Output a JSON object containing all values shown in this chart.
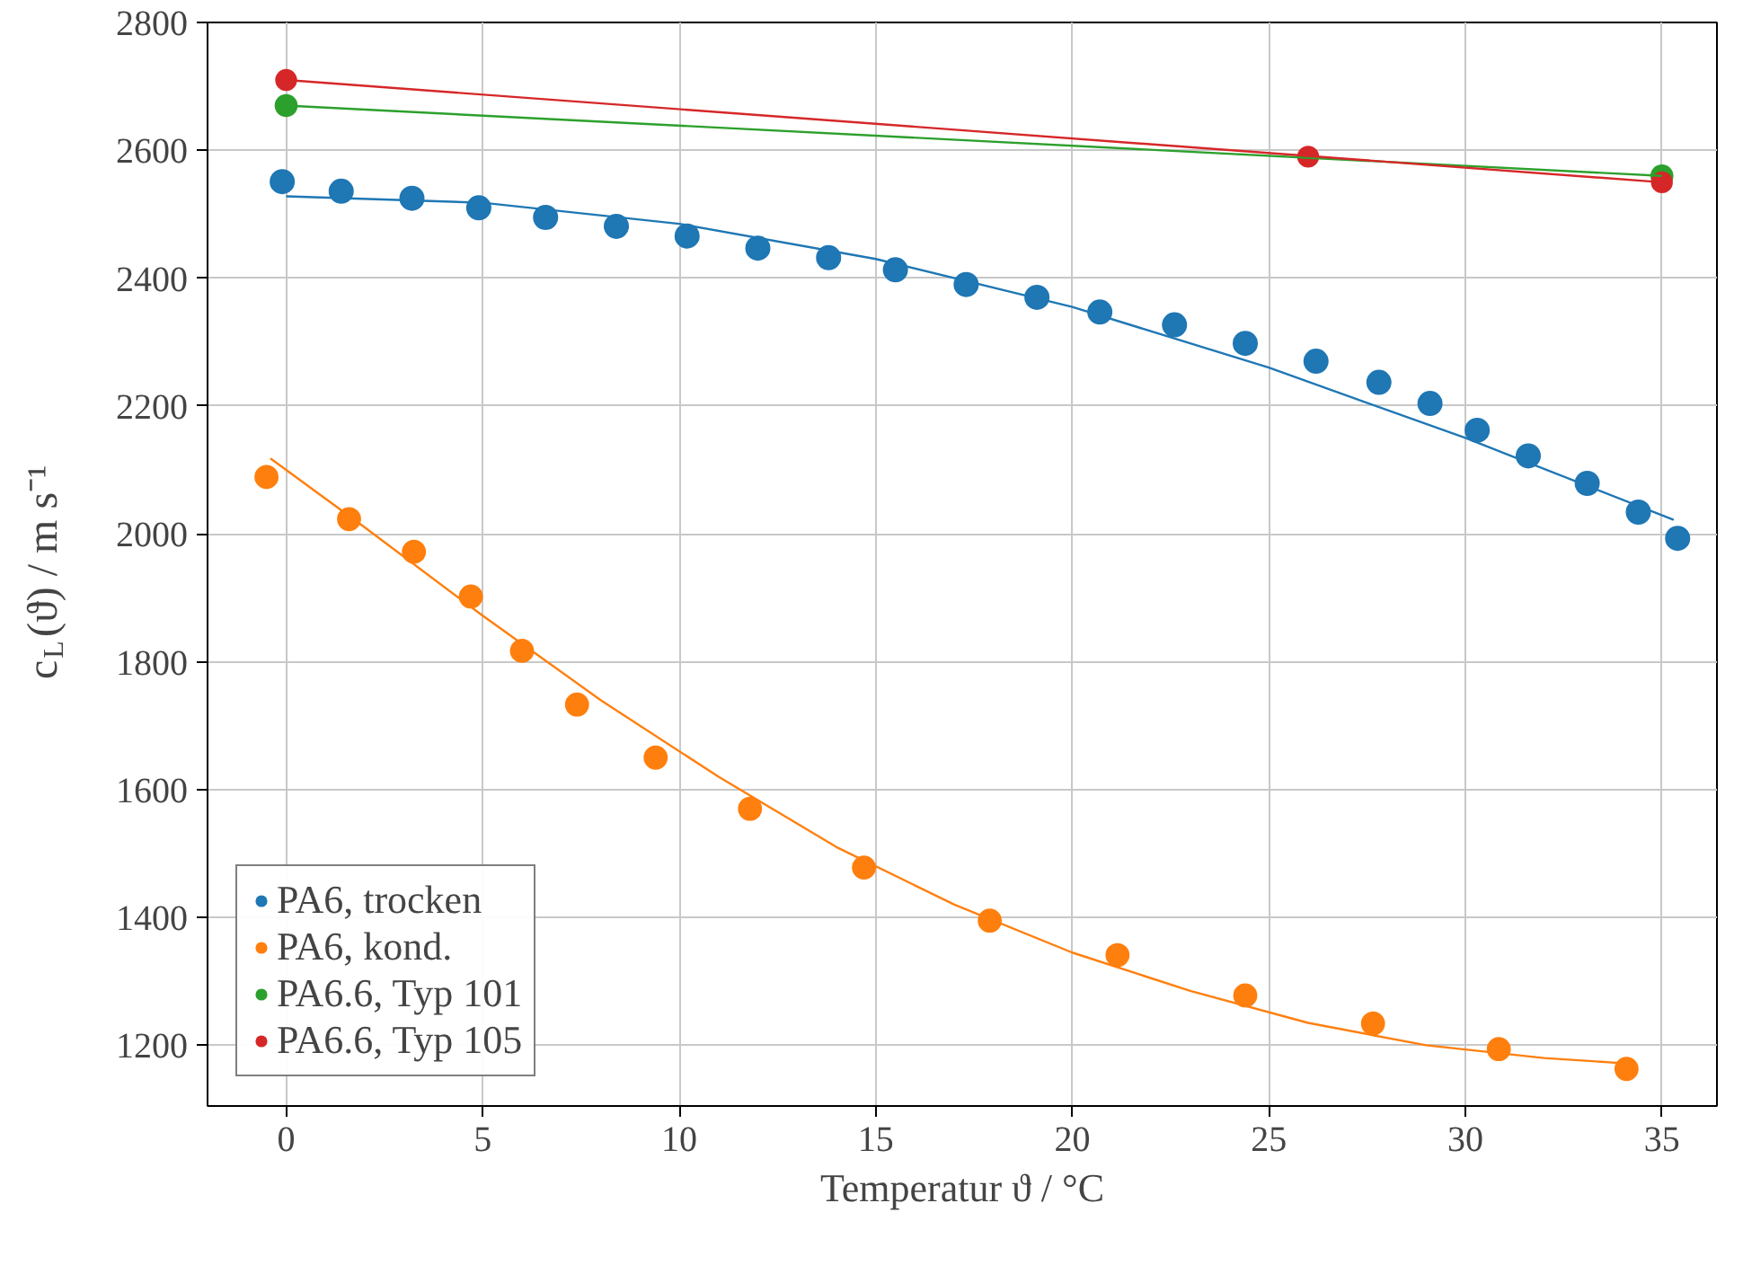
{
  "chart_data": {
    "type": "scatter",
    "xlabel": "Temperatur ϑ / °C",
    "ylabel": "c$_{L}$(ϑ) / m s⁻¹",
    "xlim": [
      -2,
      36.4
    ],
    "ylim": [
      1105,
      2800
    ],
    "xticks": [
      0,
      5,
      10,
      15,
      20,
      25,
      30,
      35
    ],
    "yticks": [
      1200,
      1400,
      1600,
      1800,
      2000,
      2200,
      2400,
      2600,
      2800
    ],
    "grid": true,
    "legend": "bottom left",
    "marker": "circle",
    "series": [
      {
        "name": "PA6, trocken",
        "color": "#1f77b4",
        "x": [
          -0.1,
          1.4,
          3.2,
          4.9,
          6.6,
          8.4,
          10.2,
          12.0,
          13.8,
          15.5,
          17.3,
          19.1,
          20.7,
          22.6,
          24.4,
          26.2,
          27.8,
          29.1,
          30.3,
          31.6,
          33.1,
          34.4,
          35.4
        ],
        "values": [
          2551,
          2536,
          2525,
          2510,
          2495,
          2481,
          2466,
          2447,
          2432,
          2413,
          2390,
          2370,
          2347,
          2327,
          2298,
          2270,
          2237,
          2204,
          2162,
          2122,
          2079,
          2034,
          1993
        ]
      },
      {
        "name": "PA6, kond.",
        "color": "#ff7f0e",
        "x": [
          -0.5,
          1.6,
          3.25,
          4.7,
          6.0,
          7.4,
          9.4,
          11.8,
          14.7,
          17.9,
          21.15,
          24.4,
          27.65,
          30.85,
          34.1
        ],
        "values": [
          2089,
          2023,
          1972,
          1902,
          1817,
          1733,
          1650,
          1570,
          1478,
          1395,
          1341,
          1278,
          1234,
          1194,
          1163
        ]
      },
      {
        "name": "PA6.6, Typ 101",
        "color": "#2ca02c",
        "x": [
          0,
          35
        ],
        "values": [
          2670,
          2560
        ]
      },
      {
        "name": "PA6.6, Typ 105",
        "color": "#d62728",
        "x": [
          0,
          26,
          35
        ],
        "values": [
          2710,
          2590,
          2550
        ]
      },
      {
        "type": "line",
        "color": "#1f77b4",
        "marker": "none",
        "x": [
          0,
          5,
          10,
          15,
          20,
          25,
          30,
          35.3
        ],
        "values": [
          2528,
          2518,
          2485,
          2430,
          2355,
          2260,
          2150,
          2022
        ]
      },
      {
        "type": "line",
        "color": "#ff7f0e",
        "marker": "none",
        "x": [
          -0.4,
          2,
          5,
          8,
          11,
          14,
          17,
          20,
          23,
          26,
          29,
          32,
          34
        ],
        "values": [
          2118,
          2010,
          1872,
          1740,
          1620,
          1510,
          1420,
          1345,
          1285,
          1235,
          1200,
          1180,
          1172
        ]
      },
      {
        "type": "line",
        "color": "#2ca02c",
        "marker": "none",
        "x": [
          0,
          35
        ],
        "values": [
          2670,
          2560
        ]
      },
      {
        "type": "line",
        "color": "#d62728",
        "marker": "none",
        "x": [
          0,
          35
        ],
        "values": [
          2710,
          2550
        ]
      }
    ]
  }
}
